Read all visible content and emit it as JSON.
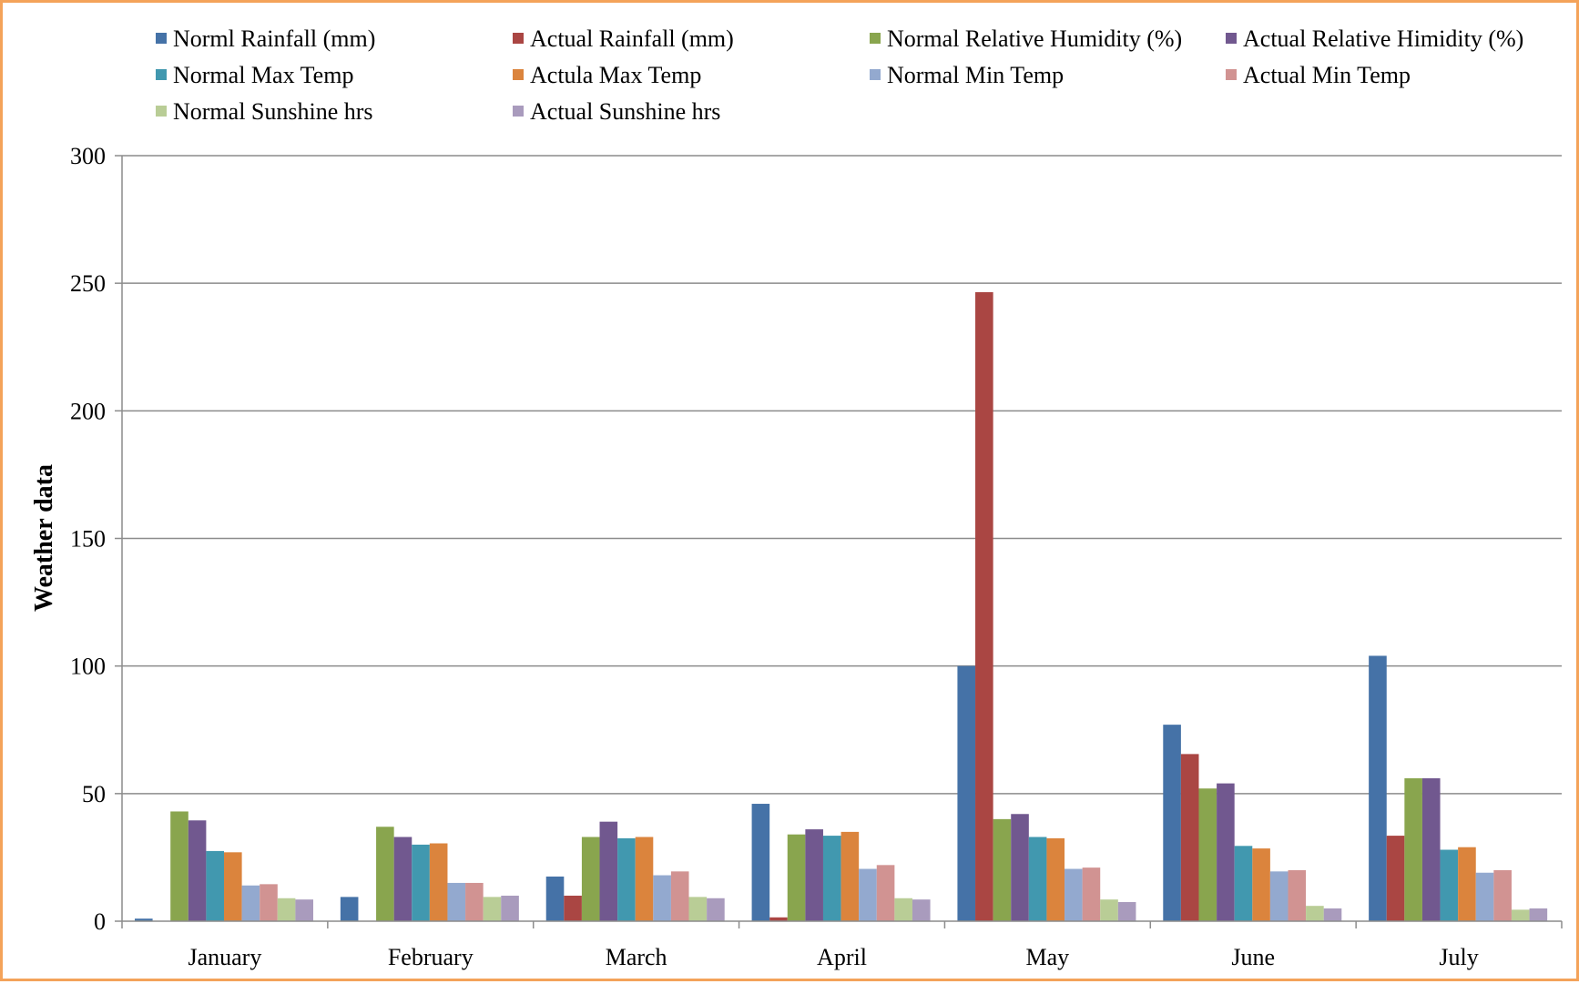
{
  "chart_data": {
    "type": "bar",
    "title": "",
    "xlabel": "",
    "ylabel": "Weather data",
    "ylim": [
      0,
      300
    ],
    "yticks": [
      0,
      50,
      100,
      150,
      200,
      250,
      300
    ],
    "grid": true,
    "legend_position": "top",
    "categories": [
      "January",
      "February",
      "March",
      "April",
      "May",
      "June",
      "July"
    ],
    "series": [
      {
        "name": "Norml Rainfall (mm)",
        "color": "#4572a7",
        "values": [
          1,
          9.5,
          17.5,
          46,
          100,
          77,
          104
        ]
      },
      {
        "name": "Actual Rainfall (mm)",
        "color": "#aa4643",
        "values": [
          0,
          0,
          10,
          1.5,
          246.5,
          65.5,
          33.5
        ]
      },
      {
        "name": "Normal Relative Humidity (%)",
        "color": "#89a54e",
        "values": [
          43,
          37,
          33,
          34,
          40,
          52,
          56
        ]
      },
      {
        "name": "Actual Relative Himidity (%)",
        "color": "#71588f",
        "values": [
          39.5,
          33,
          39,
          36,
          42,
          54,
          56
        ]
      },
      {
        "name": "Normal Max Temp",
        "color": "#4198af",
        "values": [
          27.5,
          30,
          32.5,
          33.5,
          33,
          29.5,
          28
        ]
      },
      {
        "name": "Actula Max Temp",
        "color": "#db843d",
        "values": [
          27,
          30.5,
          33,
          35,
          32.5,
          28.5,
          29
        ]
      },
      {
        "name": "Normal Min Temp",
        "color": "#93a9cf",
        "values": [
          14,
          15,
          18,
          20.5,
          20.5,
          19.5,
          19
        ]
      },
      {
        "name": "Actual Min Temp",
        "color": "#d19392",
        "values": [
          14.5,
          15,
          19.5,
          22,
          21,
          20,
          20
        ]
      },
      {
        "name": "Normal Sunshine hrs",
        "color": "#b9cd96",
        "values": [
          9,
          9.5,
          9.5,
          9,
          8.5,
          6,
          4.5
        ]
      },
      {
        "name": "Actual Sunshine hrs",
        "color": "#a99bbd",
        "values": [
          8.5,
          10,
          9,
          8.5,
          7.5,
          5,
          5
        ]
      }
    ]
  }
}
